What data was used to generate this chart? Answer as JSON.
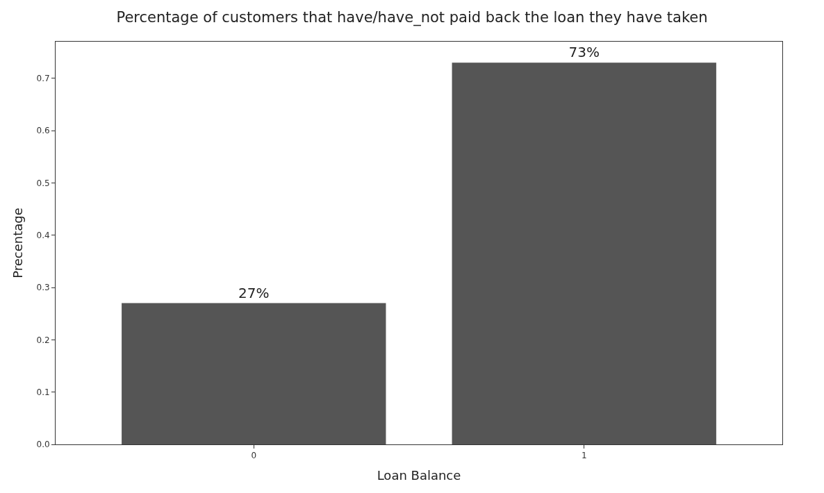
{
  "chart_data": {
    "type": "bar",
    "title": "Percentage of customers that have/have_not paid back the loan they have taken",
    "xlabel": "Loan Balance",
    "ylabel": "Precentage",
    "categories": [
      "0",
      "1"
    ],
    "values": [
      0.27,
      0.73
    ],
    "value_labels": [
      "27%",
      "73%"
    ],
    "color": "#555555",
    "ylim": [
      0,
      0.77
    ],
    "yticks": [
      {
        "value": 0,
        "label": "0.0"
      },
      0.1,
      0.2,
      0.3,
      0.4,
      0.5,
      0.6,
      0.7
    ],
    "legend": false
  }
}
